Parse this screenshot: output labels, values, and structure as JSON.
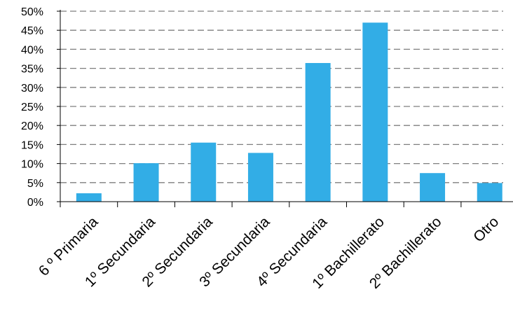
{
  "chart_data": {
    "type": "bar",
    "categories": [
      "6 º Primaria",
      "1º Secundaria",
      "2º Secundaria",
      "3º Secundaria",
      "4º Secundaria",
      "1º Bachillerato",
      "2º Bachillerato",
      "Otro"
    ],
    "values": [
      2.2,
      10.1,
      15.5,
      12.8,
      36.4,
      47.0,
      7.5,
      4.9
    ],
    "ylim": [
      0,
      50
    ],
    "yticks": [
      "0%",
      "5%",
      "10%",
      "15%",
      "20%",
      "25%",
      "30%",
      "35%",
      "40%",
      "45%",
      "50%"
    ],
    "grid": true,
    "grid_style": "dashed",
    "bar_color": "#32ADE6",
    "title": "",
    "xlabel": "",
    "ylabel": ""
  }
}
